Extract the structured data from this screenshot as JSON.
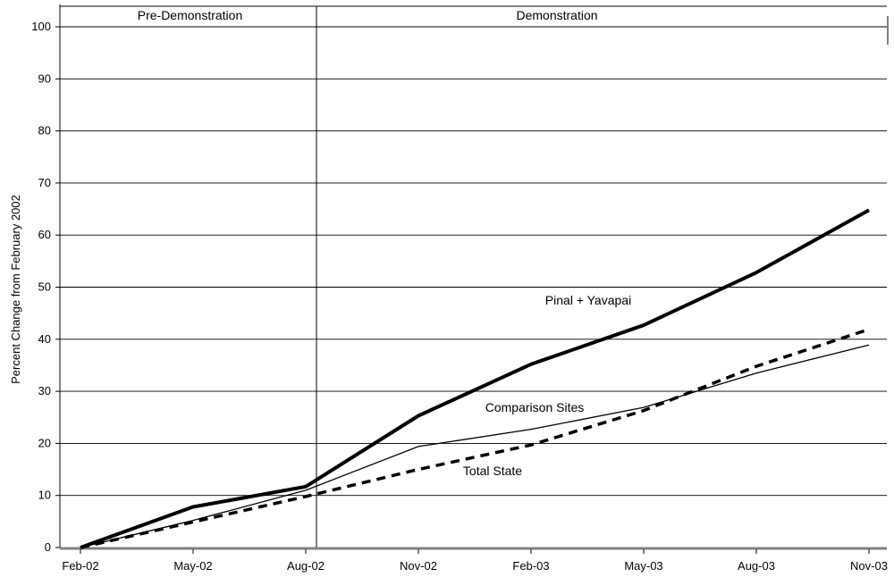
{
  "chart_data": {
    "type": "line",
    "title": "",
    "xlabel": "",
    "ylabel": "Percent Change from February 2002",
    "ylim": [
      0,
      100
    ],
    "yticks": [
      0,
      10,
      20,
      30,
      40,
      50,
      60,
      70,
      80,
      90,
      100
    ],
    "categories": [
      "Feb-02",
      "May-02",
      "Aug-02",
      "Nov-02",
      "Feb-03",
      "May-03",
      "Aug-03",
      "Nov-03"
    ],
    "grid": true,
    "series": [
      {
        "name": "Pinal + Yavapai",
        "style": "thick-solid",
        "color": "#000000",
        "values": [
          0,
          7.8,
          11.7,
          25.3,
          35.2,
          42.7,
          52.8,
          64.8
        ]
      },
      {
        "name": "Comparison Sites",
        "style": "thin-solid",
        "color": "#000000",
        "values": [
          0,
          5.2,
          11,
          19.4,
          22.7,
          26.9,
          33.5,
          38.9
        ]
      },
      {
        "name": "Total State",
        "style": "dashed",
        "color": "#000000",
        "values": [
          0,
          4.9,
          9.8,
          15,
          19.7,
          26.3,
          34.8,
          41.9
        ]
      }
    ],
    "periods": [
      {
        "label": "Pre-Demonstration",
        "from": "Feb-02",
        "to": "Aug-02"
      },
      {
        "label": "Demonstration",
        "from": "Aug-02",
        "to": "Nov-03"
      }
    ]
  }
}
